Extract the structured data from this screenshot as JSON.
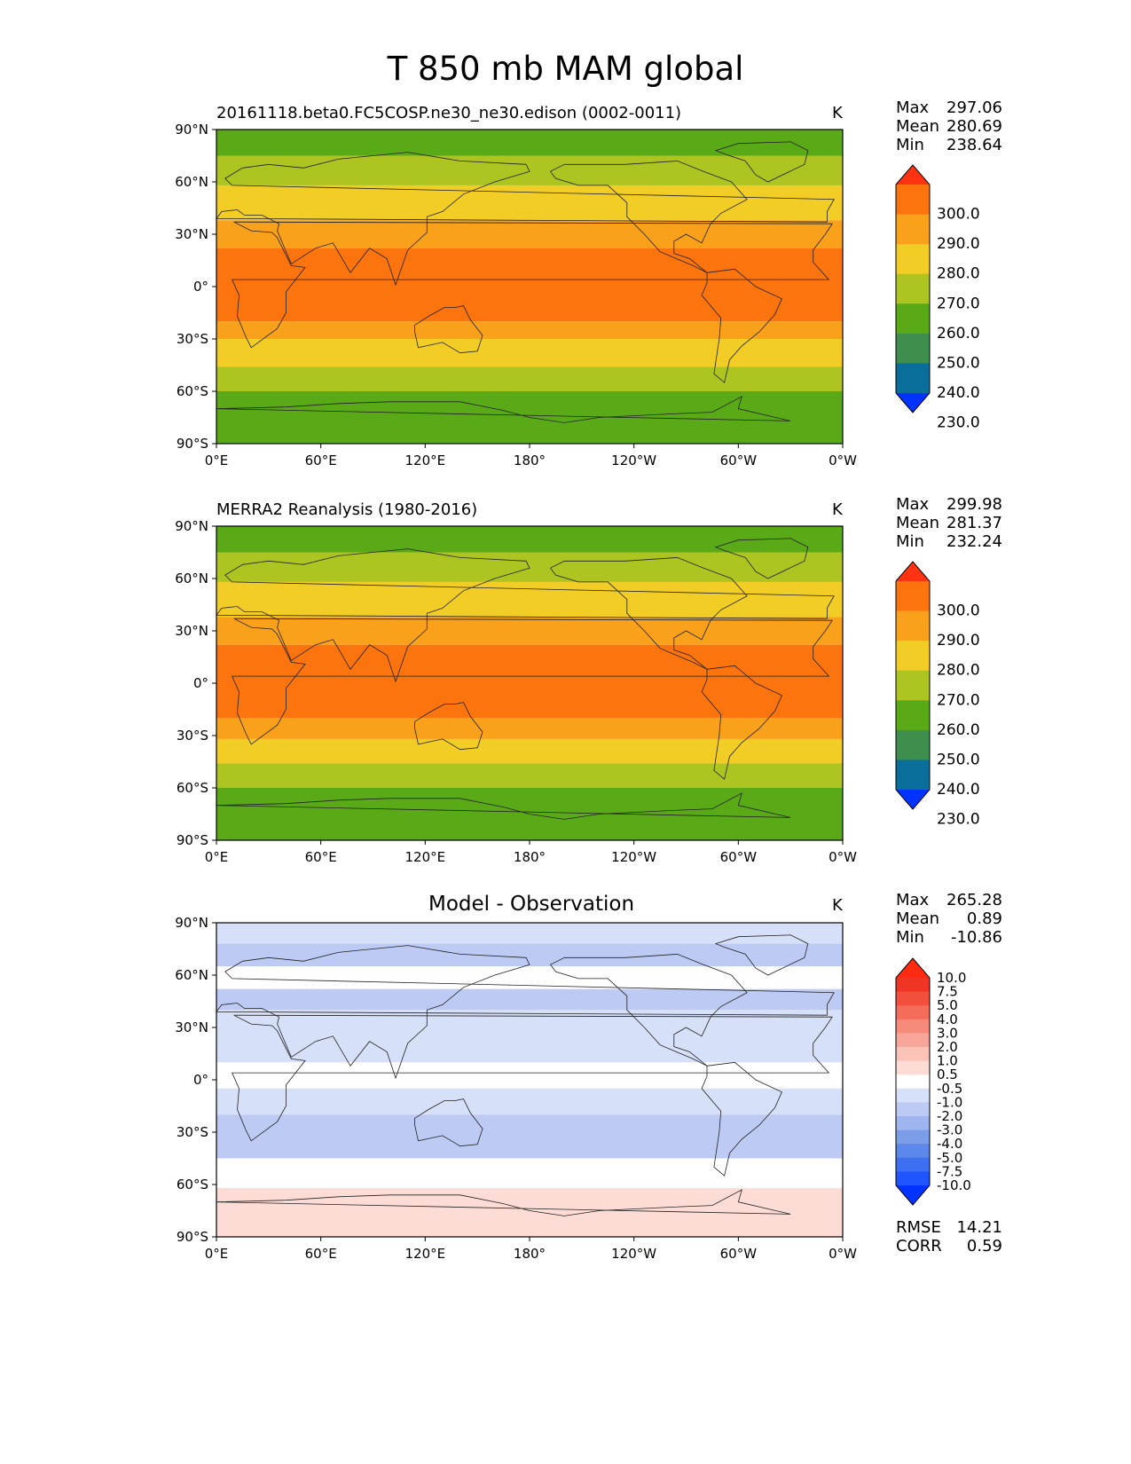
{
  "page_title": "T 850 mb MAM global",
  "axes": {
    "lat_ticks": [
      "90°N",
      "60°N",
      "30°N",
      "0°",
      "30°S",
      "60°S",
      "90°S"
    ],
    "lon_ticks": [
      "0°E",
      "60°E",
      "120°E",
      "180°",
      "120°W",
      "60°W",
      "0°W"
    ]
  },
  "colors": {
    "field_levels": [
      "#0033ff",
      "#0a6e9a",
      "#3e8e4e",
      "#5aaa18",
      "#aec420",
      "#f2cd25",
      "#f9a11a",
      "#fb740e",
      "#ff3312"
    ],
    "diff_levels": [
      "#0033ff",
      "#1f55ff",
      "#3d6ff2",
      "#5b88ea",
      "#7c9ee8",
      "#9fb5ef",
      "#bccaf4",
      "#d7e0f9",
      "#ffffff",
      "#fddcd6",
      "#fbc2b8",
      "#f8a699",
      "#f68a7b",
      "#f46c5a",
      "#f2503c",
      "#f03524",
      "#ff2a10"
    ]
  },
  "panels": [
    {
      "title": "20161118.beta0.FC5COSP.ne30_ne30.edison (0002-0011)",
      "units": "K",
      "stats": {
        "max_label": "Max",
        "max": "297.06",
        "mean_label": "Mean",
        "mean": "280.69",
        "min_label": "Min",
        "min": "238.64"
      },
      "colorbar_labels": [
        "300.0",
        "290.0",
        "280.0",
        "270.0",
        "260.0",
        "250.0",
        "240.0",
        "230.0"
      ]
    },
    {
      "title": "MERRA2 Reanalysis (1980-2016)",
      "units": "K",
      "stats": {
        "max_label": "Max",
        "max": "299.98",
        "mean_label": "Mean",
        "mean": "281.37",
        "min_label": "Min",
        "min": "232.24"
      },
      "colorbar_labels": [
        "300.0",
        "290.0",
        "280.0",
        "270.0",
        "260.0",
        "250.0",
        "240.0",
        "230.0"
      ]
    },
    {
      "title": "Model - Observation",
      "units": "K",
      "stats": {
        "max_label": "Max",
        "max": "265.28",
        "mean_label": "Mean",
        "mean": "0.89",
        "min_label": "Min",
        "min": "-10.86"
      },
      "colorbar_labels": [
        "10.0",
        "7.5",
        "5.0",
        "4.0",
        "3.0",
        "2.0",
        "1.0",
        "0.5",
        "-0.5",
        "-1.0",
        "-2.0",
        "-3.0",
        "-4.0",
        "-5.0",
        "-7.5",
        "-10.0"
      ],
      "rmse_label": "RMSE",
      "rmse": "14.21",
      "corr_label": "CORR",
      "corr": "0.59"
    }
  ],
  "chart_data": [
    {
      "type": "heatmap",
      "title": "20161118.beta0.FC5COSP.ne30_ne30.edison (0002-0011)",
      "variable": "T 850 mb MAM global",
      "units": "K",
      "x_range": [
        0,
        360
      ],
      "y_range": [
        -90,
        90
      ],
      "levels": [
        230,
        240,
        250,
        260,
        270,
        280,
        290,
        300
      ],
      "stats": {
        "max": 297.06,
        "mean": 280.69,
        "min": 238.64
      },
      "zonal_bands": [
        {
          "lat": [
            75,
            90
          ],
          "value": 252
        },
        {
          "lat": [
            58,
            75
          ],
          "value": 262
        },
        {
          "lat": [
            38,
            58
          ],
          "value": 272
        },
        {
          "lat": [
            22,
            38
          ],
          "value": 283
        },
        {
          "lat": [
            -20,
            22
          ],
          "value": 291
        },
        {
          "lat": [
            -30,
            -20
          ],
          "value": 283
        },
        {
          "lat": [
            -46,
            -30
          ],
          "value": 274
        },
        {
          "lat": [
            -60,
            -46
          ],
          "value": 264
        },
        {
          "lat": [
            -90,
            -60
          ],
          "value": 255
        }
      ]
    },
    {
      "type": "heatmap",
      "title": "MERRA2 Reanalysis (1980-2016)",
      "variable": "T 850 mb MAM global",
      "units": "K",
      "x_range": [
        0,
        360
      ],
      "y_range": [
        -90,
        90
      ],
      "levels": [
        230,
        240,
        250,
        260,
        270,
        280,
        290,
        300
      ],
      "stats": {
        "max": 299.98,
        "mean": 281.37,
        "min": 232.24
      },
      "zonal_bands": [
        {
          "lat": [
            75,
            90
          ],
          "value": 253
        },
        {
          "lat": [
            58,
            75
          ],
          "value": 263
        },
        {
          "lat": [
            38,
            58
          ],
          "value": 273
        },
        {
          "lat": [
            22,
            38
          ],
          "value": 284
        },
        {
          "lat": [
            -20,
            22
          ],
          "value": 292
        },
        {
          "lat": [
            -32,
            -20
          ],
          "value": 284
        },
        {
          "lat": [
            -46,
            -32
          ],
          "value": 275
        },
        {
          "lat": [
            -60,
            -46
          ],
          "value": 265
        },
        {
          "lat": [
            -90,
            -60
          ],
          "value": 255
        }
      ]
    },
    {
      "type": "heatmap",
      "title": "Model - Observation",
      "variable": "T 850 mb MAM global",
      "units": "K",
      "x_range": [
        0,
        360
      ],
      "y_range": [
        -90,
        90
      ],
      "levels": [
        -10,
        -7.5,
        -5,
        -4,
        -3,
        -2,
        -1,
        -0.5,
        0.5,
        1,
        2,
        3,
        4,
        5,
        7.5,
        10
      ],
      "stats": {
        "max": 265.28,
        "mean": 0.89,
        "min": -10.86,
        "rmse": 14.21,
        "corr": 0.59
      },
      "zonal_bands": [
        {
          "lat": [
            78,
            90
          ],
          "value": -0.8
        },
        {
          "lat": [
            65,
            78
          ],
          "value": -1.2
        },
        {
          "lat": [
            52,
            65
          ],
          "value": 0.2
        },
        {
          "lat": [
            40,
            52
          ],
          "value": -1.5
        },
        {
          "lat": [
            10,
            40
          ],
          "value": -0.8
        },
        {
          "lat": [
            -5,
            10
          ],
          "value": 0.0
        },
        {
          "lat": [
            -20,
            -5
          ],
          "value": -0.7
        },
        {
          "lat": [
            -45,
            -20
          ],
          "value": -1.6
        },
        {
          "lat": [
            -62,
            -45
          ],
          "value": 0.0
        },
        {
          "lat": [
            -90,
            -62
          ],
          "value": 0.7
        }
      ]
    }
  ]
}
